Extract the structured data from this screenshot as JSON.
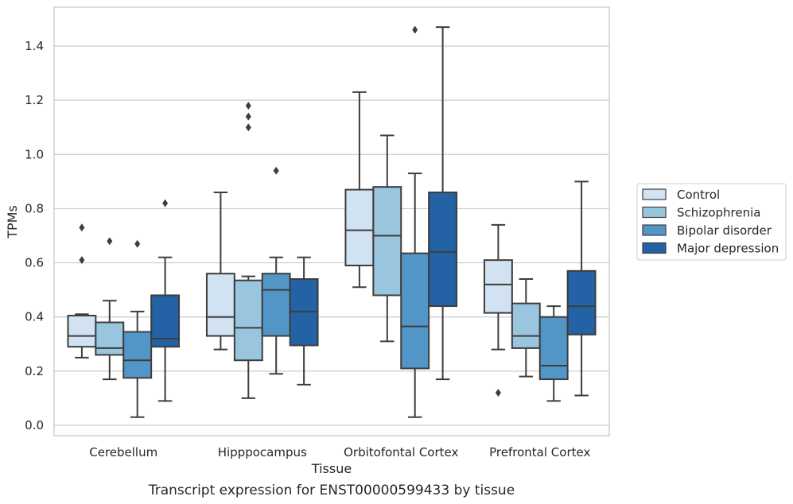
{
  "chart_data": {
    "type": "box",
    "xlabel": "Tissue",
    "ylabel": "TPMs",
    "caption": "Transcript expression for ENST00000599433 by tissue",
    "ylim": [
      -0.04,
      1.55
    ],
    "yticks": [
      0.0,
      0.2,
      0.4,
      0.6,
      0.8,
      1.0,
      1.2,
      1.4
    ],
    "ytick_labels": [
      "0.0",
      "0.2",
      "0.4",
      "0.6",
      "0.8",
      "1.0",
      "1.2",
      "1.4"
    ],
    "grid": "horizontal",
    "legend_position": "outside right",
    "categories": [
      "Cerebellum",
      "Hipppocampus",
      "Orbitofontal Cortex",
      "Prefrontal Cortex"
    ],
    "series": [
      {
        "name": "Control",
        "color": "#d1e2f2",
        "boxes": [
          {
            "low": 0.25,
            "q1": 0.29,
            "median": 0.33,
            "q3": 0.405,
            "high": 0.41,
            "outliers": [
              0.73,
              0.61
            ]
          },
          {
            "low": 0.28,
            "q1": 0.33,
            "median": 0.4,
            "q3": 0.56,
            "high": 0.86,
            "outliers": []
          },
          {
            "low": 0.51,
            "q1": 0.59,
            "median": 0.72,
            "q3": 0.87,
            "high": 1.23,
            "outliers": []
          },
          {
            "low": 0.28,
            "q1": 0.415,
            "median": 0.52,
            "q3": 0.61,
            "high": 0.74,
            "outliers": [
              0.12
            ]
          }
        ]
      },
      {
        "name": "Schizophrenia",
        "color": "#9ac5df",
        "boxes": [
          {
            "low": 0.17,
            "q1": 0.26,
            "median": 0.285,
            "q3": 0.38,
            "high": 0.46,
            "outliers": [
              0.68
            ]
          },
          {
            "low": 0.1,
            "q1": 0.24,
            "median": 0.36,
            "q3": 0.535,
            "high": 0.55,
            "outliers": [
              1.18,
              1.14,
              1.1
            ]
          },
          {
            "low": 0.31,
            "q1": 0.48,
            "median": 0.7,
            "q3": 0.88,
            "high": 1.07,
            "outliers": []
          },
          {
            "low": 0.18,
            "q1": 0.285,
            "median": 0.33,
            "q3": 0.45,
            "high": 0.54,
            "outliers": []
          }
        ]
      },
      {
        "name": "Bipolar disorder",
        "color": "#5296c7",
        "boxes": [
          {
            "low": 0.03,
            "q1": 0.175,
            "median": 0.24,
            "q3": 0.345,
            "high": 0.42,
            "outliers": [
              0.67
            ]
          },
          {
            "low": 0.19,
            "q1": 0.33,
            "median": 0.5,
            "q3": 0.56,
            "high": 0.62,
            "outliers": [
              0.94
            ]
          },
          {
            "low": 0.03,
            "q1": 0.21,
            "median": 0.365,
            "q3": 0.635,
            "high": 0.93,
            "outliers": [
              1.46
            ]
          },
          {
            "low": 0.09,
            "q1": 0.17,
            "median": 0.22,
            "q3": 0.4,
            "high": 0.44,
            "outliers": []
          }
        ]
      },
      {
        "name": "Major depression",
        "color": "#2362a4",
        "boxes": [
          {
            "low": 0.09,
            "q1": 0.29,
            "median": 0.32,
            "q3": 0.48,
            "high": 0.62,
            "outliers": [
              0.82
            ]
          },
          {
            "low": 0.15,
            "q1": 0.295,
            "median": 0.42,
            "q3": 0.54,
            "high": 0.62,
            "outliers": []
          },
          {
            "low": 0.17,
            "q1": 0.44,
            "median": 0.64,
            "q3": 0.86,
            "high": 1.47,
            "outliers": []
          },
          {
            "low": 0.11,
            "q1": 0.335,
            "median": 0.44,
            "q3": 0.57,
            "high": 0.9,
            "outliers": []
          }
        ]
      }
    ]
  }
}
